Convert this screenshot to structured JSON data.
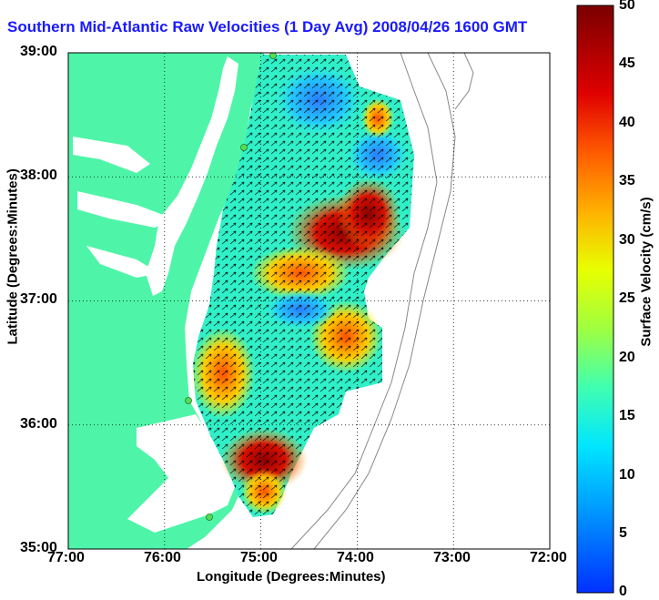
{
  "title": "Southern Mid-Atlantic Raw Velocities (1 Day Avg) 2008/04/26 1600 GMT",
  "axes": {
    "x_label": "Longitude (Degrees:Minutes)",
    "y_label": "Latitude (Degrees:Minutes)",
    "x_ticks": [
      "77:00",
      "76:00",
      "75:00",
      "74:00",
      "73:00",
      "72:00"
    ],
    "y_ticks": [
      "39:00",
      "38:00",
      "37:00",
      "36:00",
      "35:00"
    ]
  },
  "colorbar": {
    "label": "Surface Velocity (cm/s)",
    "ticks": [
      "50",
      "45",
      "40",
      "35",
      "30",
      "25",
      "20",
      "15",
      "10",
      "5",
      "0"
    ],
    "range": [
      0,
      50
    ]
  },
  "colors": {
    "land": "#4ef5a8",
    "water": "#ffffff",
    "title": "#1a1aff",
    "station": "#55dd55"
  }
}
